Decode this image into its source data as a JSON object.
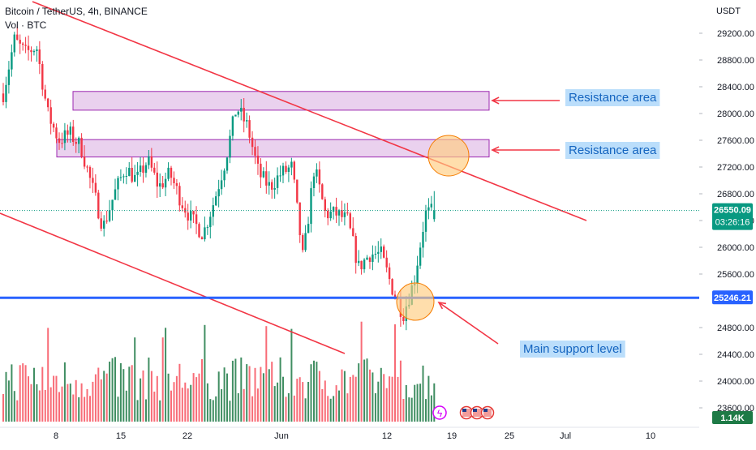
{
  "header": {
    "symbol": "Bitcoin / TetherUS, 4h, BINANCE",
    "volume_label": "Vol · BTC"
  },
  "colors": {
    "up": "#089981",
    "down": "#f23645",
    "vol_up": "#1e7a46",
    "vol_down": "#f7525f",
    "trendline": "#f23645",
    "zone_fill": "#e1bee7",
    "zone_border": "#9c27b0",
    "support": "#2962ff",
    "circle_fill": "#ffcc80",
    "circle_border": "#f57c00",
    "label_bg": "#bbdefb",
    "label_text": "#1565c0",
    "price_tag": "#089981",
    "support_tag": "#2962ff",
    "vol_tag": "#1e7a46"
  },
  "price_axis": {
    "currency": "USDT",
    "ticks": [
      "29200.00",
      "28800.00",
      "28400.00",
      "28000.00",
      "27600.00",
      "27200.00",
      "26800.00",
      "26400.00",
      "26000.00",
      "25600.00",
      "24800.00",
      "24400.00",
      "24000.00",
      "23600.00"
    ],
    "last_price": "26550.09",
    "countdown": "03:26:16",
    "support_value": "25246.21",
    "volume_value": "1.14K"
  },
  "time_axis": {
    "labels": [
      "8",
      "15",
      "22",
      "Jun",
      "12",
      "19",
      "25",
      "Jul",
      "10"
    ]
  },
  "annotations": {
    "resistance_1": "Resistance area",
    "resistance_2": "Resistance area",
    "support": "Main support level"
  },
  "chart_data": {
    "type": "candlestick",
    "symbol": "BTCUSDT",
    "interval": "4h",
    "exchange": "BINANCE",
    "price_range": [
      23400,
      29500
    ],
    "last_price": 26550.09,
    "support_level": 25246.21,
    "resistance_zones": [
      {
        "label": "Resistance area",
        "low": 28050,
        "high": 28330
      },
      {
        "label": "Resistance area",
        "low": 27350,
        "high": 27610
      }
    ],
    "close_path_anchors": [
      {
        "date": "May 3",
        "close": 28300
      },
      {
        "date": "May 5",
        "close": 29100
      },
      {
        "date": "May 6",
        "close": 28900
      },
      {
        "date": "May 7",
        "close": 29000
      },
      {
        "date": "May 8",
        "close": 28000
      },
      {
        "date": "May 8 PM",
        "close": 27600
      },
      {
        "date": "May 9",
        "close": 27700
      },
      {
        "date": "May 10",
        "close": 27500
      },
      {
        "date": "May 11",
        "close": 26900
      },
      {
        "date": "May 12",
        "close": 26300
      },
      {
        "date": "May 13",
        "close": 26800
      },
      {
        "date": "May 15",
        "close": 27200
      },
      {
        "date": "May 16",
        "close": 27000
      },
      {
        "date": "May 17",
        "close": 27300
      },
      {
        "date": "May 19",
        "close": 26900
      },
      {
        "date": "May 21",
        "close": 27100
      },
      {
        "date": "May 23",
        "close": 26700
      },
      {
        "date": "May 24",
        "close": 26400
      },
      {
        "date": "May 25",
        "close": 26200
      },
      {
        "date": "May 26",
        "close": 26700
      },
      {
        "date": "May 28",
        "close": 27300
      },
      {
        "date": "May 29",
        "close": 28100
      },
      {
        "date": "May 30",
        "close": 27800
      },
      {
        "date": "May 31",
        "close": 27100
      },
      {
        "date": "Jun 1",
        "close": 26900
      },
      {
        "date": "Jun 2",
        "close": 27100
      },
      {
        "date": "Jun 4",
        "close": 27200
      },
      {
        "date": "Jun 5",
        "close": 25800
      },
      {
        "date": "Jun 6",
        "close": 27200
      },
      {
        "date": "Jun 7",
        "close": 26500
      },
      {
        "date": "Jun 8",
        "close": 26500
      },
      {
        "date": "Jun 9",
        "close": 26400
      },
      {
        "date": "Jun 10",
        "close": 25700
      },
      {
        "date": "Jun 12",
        "close": 25900
      },
      {
        "date": "Jun 13",
        "close": 25900
      },
      {
        "date": "Jun 14",
        "close": 25400
      },
      {
        "date": "Jun 15",
        "close": 25000
      },
      {
        "date": "Jun 16",
        "close": 25500
      },
      {
        "date": "Jun 17",
        "close": 26500
      },
      {
        "date": "Jun 17 PM",
        "close": 26550
      }
    ]
  }
}
